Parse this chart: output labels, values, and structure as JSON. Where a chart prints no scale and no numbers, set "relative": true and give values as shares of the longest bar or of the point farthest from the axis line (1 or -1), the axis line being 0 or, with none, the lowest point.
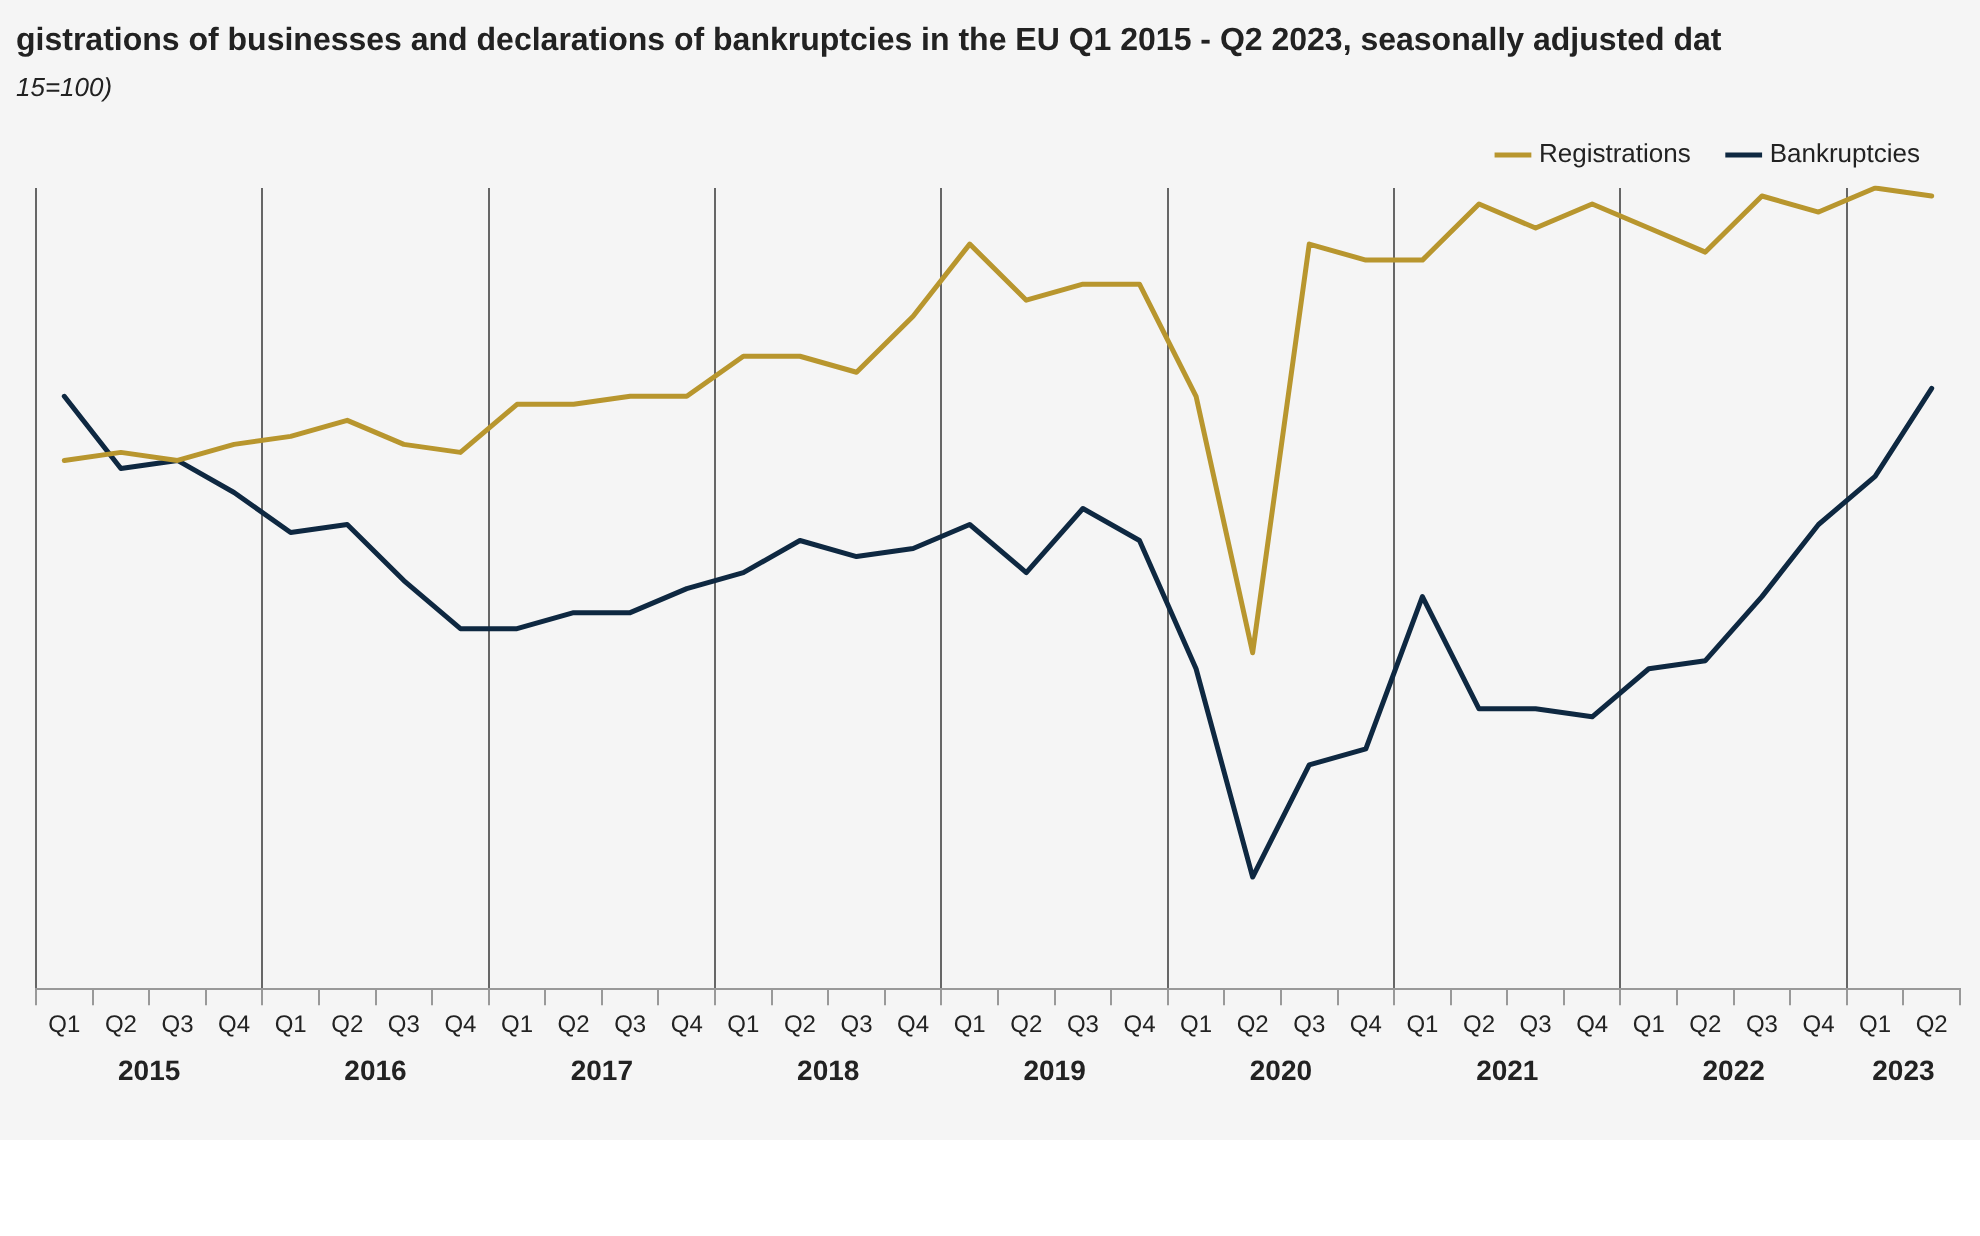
{
  "chart_data": {
    "type": "line",
    "title": "gistrations of businesses and declarations of bankruptcies in the EU Q1 2015 - Q2 2023, seasonally adjusted dat",
    "subtitle": "15=100)",
    "relative": true,
    "grid": "x",
    "legend": "top right",
    "categories": [
      "Q1",
      "Q2",
      "Q3",
      "Q4",
      "Q1",
      "Q2",
      "Q3",
      "Q4",
      "Q1",
      "Q2",
      "Q3",
      "Q4",
      "Q1",
      "Q2",
      "Q3",
      "Q4",
      "Q1",
      "Q2",
      "Q3",
      "Q4",
      "Q1",
      "Q2",
      "Q3",
      "Q4",
      "Q1",
      "Q2",
      "Q3",
      "Q4",
      "Q1",
      "Q2",
      "Q3",
      "Q4",
      "Q1",
      "Q2"
    ],
    "annotations": [
      "2015",
      "2016",
      "2017",
      "2018",
      "2019",
      "2020",
      "2021",
      "2022",
      "2023"
    ],
    "series": [
      {
        "name": "Registrations",
        "color": "#b8962e",
        "values": [
          0.66,
          0.67,
          0.66,
          0.68,
          0.69,
          0.71,
          0.68,
          0.67,
          0.73,
          0.73,
          0.74,
          0.74,
          0.79,
          0.79,
          0.77,
          0.84,
          0.93,
          0.86,
          0.88,
          0.88,
          0.74,
          0.42,
          0.93,
          0.91,
          0.91,
          0.98,
          0.95,
          0.98,
          0.95,
          0.92,
          0.99,
          0.97,
          1,
          0.99
        ]
      },
      {
        "name": "Bankruptcies",
        "color": "#0e2841",
        "values": [
          0.74,
          0.65,
          0.66,
          0.62,
          0.57,
          0.58,
          0.51,
          0.45,
          0.45,
          0.47,
          0.47,
          0.5,
          0.52,
          0.56,
          0.54,
          0.55,
          0.58,
          0.52,
          0.6,
          0.56,
          0.4,
          0.14,
          0.28,
          0.3,
          0.49,
          0.35,
          0.35,
          0.34,
          0.4,
          0.41,
          0.49,
          0.58,
          0.64,
          0.75
        ]
      }
    ]
  }
}
